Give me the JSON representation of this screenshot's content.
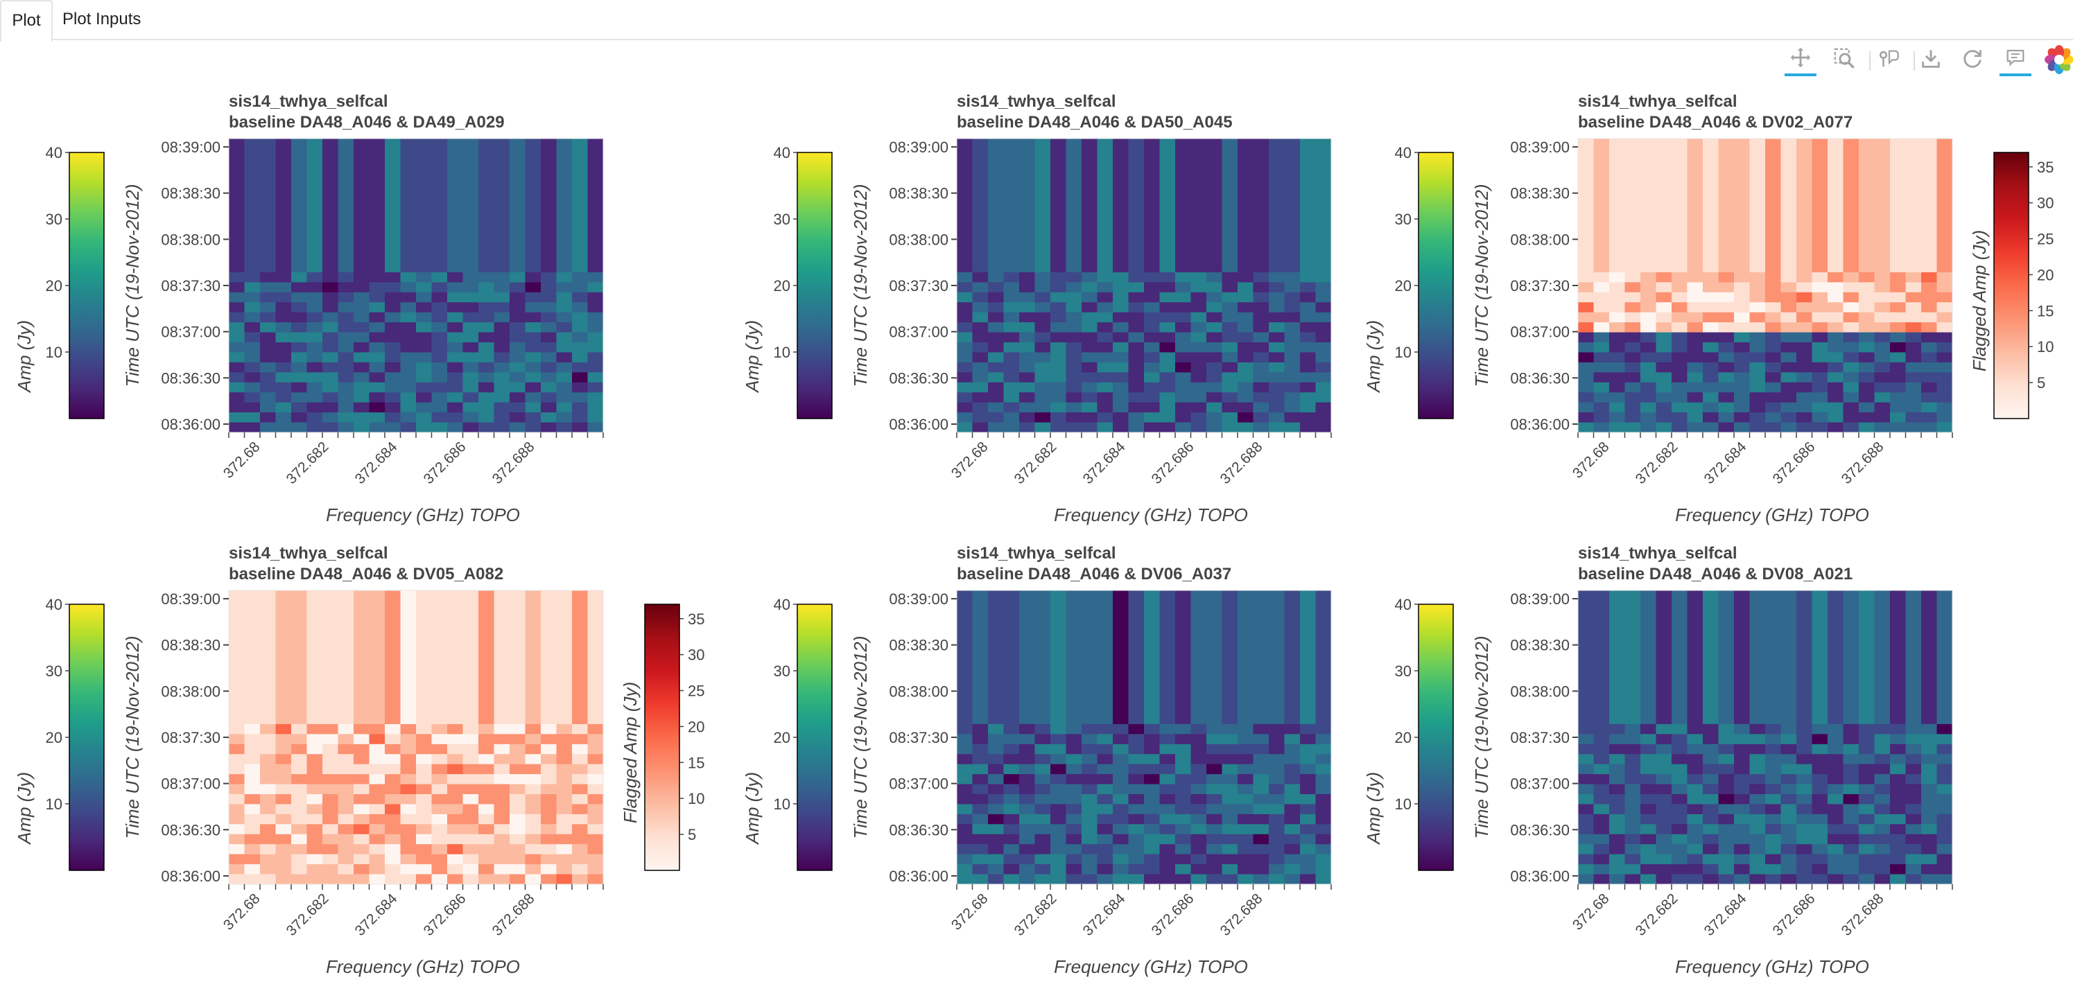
{
  "tabs": [
    {
      "label": "Plot",
      "active": true
    },
    {
      "label": "Plot Inputs",
      "active": false
    }
  ],
  "toolbar": {
    "tools": [
      {
        "name": "pan-icon",
        "active": true
      },
      {
        "name": "box-zoom-icon",
        "active": false
      },
      {
        "name": "hover-icon",
        "active": false
      },
      {
        "name": "save-icon",
        "active": false
      },
      {
        "name": "reset-icon",
        "active": false
      },
      {
        "name": "comment-icon",
        "active": true
      },
      {
        "name": "bokeh-logo",
        "active": false
      }
    ],
    "accent": "#26aae1"
  },
  "colormaps": {
    "viridis": [
      "#440154",
      "#482878",
      "#3e4989",
      "#31688e",
      "#26828e",
      "#1f9e89",
      "#35b779",
      "#6ece58",
      "#b5de2b",
      "#fde725"
    ],
    "reds": [
      "#fff5f0",
      "#fee0d2",
      "#fcbba1",
      "#fc9272",
      "#fb6a4a",
      "#ef3b2c",
      "#cb181d",
      "#a50f15",
      "#67000d"
    ]
  },
  "chart_data": [
    {
      "type": "heatmap",
      "title": "sis14_twhya_selfcal",
      "subtitle": "baseline DA48_A046 & DA49_A029",
      "xlabel": "Frequency (GHz) TOPO",
      "ylabel": "Time UTC (19-Nov-2012)",
      "x_ticks": [
        "372.68",
        "372.682",
        "372.684",
        "372.686",
        "372.688"
      ],
      "y_ticks": [
        "08:36:00",
        "08:36:30",
        "08:37:00",
        "08:37:30",
        "08:38:00",
        "08:38:30",
        "08:39:00"
      ],
      "colorbar": {
        "label": "Amp (Jy)",
        "ticks": [
          "10",
          "20",
          "30",
          "40"
        ],
        "range": [
          0,
          40
        ],
        "cmap": "viridis"
      },
      "flag_colorbar": null,
      "channels": 24,
      "rows_below_break": 16,
      "flag_region": null,
      "seed": 11,
      "cell_style": "viridis"
    },
    {
      "type": "heatmap",
      "title": "sis14_twhya_selfcal",
      "subtitle": "baseline DA48_A046 & DA50_A045",
      "xlabel": "Frequency (GHz) TOPO",
      "ylabel": "Time UTC (19-Nov-2012)",
      "x_ticks": [
        "372.68",
        "372.682",
        "372.684",
        "372.686",
        "372.688"
      ],
      "y_ticks": [
        "08:36:00",
        "08:36:30",
        "08:37:00",
        "08:37:30",
        "08:38:00",
        "08:38:30",
        "08:39:00"
      ],
      "colorbar": {
        "label": "Amp (Jy)",
        "ticks": [
          "10",
          "20",
          "30",
          "40"
        ],
        "range": [
          0,
          40
        ],
        "cmap": "viridis"
      },
      "flag_colorbar": null,
      "channels": 24,
      "rows_below_break": 16,
      "flag_region": null,
      "seed": 23,
      "cell_style": "viridis"
    },
    {
      "type": "heatmap",
      "title": "sis14_twhya_selfcal",
      "subtitle": "baseline DA48_A046 & DV02_A077",
      "xlabel": "Frequency (GHz) TOPO",
      "ylabel": "Time UTC (19-Nov-2012)",
      "x_ticks": [
        "372.68",
        "372.682",
        "372.684",
        "372.686",
        "372.688"
      ],
      "y_ticks": [
        "08:36:00",
        "08:36:30",
        "08:37:00",
        "08:37:30",
        "08:38:00",
        "08:38:30",
        "08:39:00"
      ],
      "colorbar": {
        "label": "Amp (Jy)",
        "ticks": [
          "10",
          "20",
          "30",
          "40"
        ],
        "range": [
          0,
          40
        ],
        "cmap": "viridis"
      },
      "flag_colorbar": {
        "label": "Flagged Amp (Jy)",
        "ticks": [
          "5",
          "10",
          "15",
          "20",
          "25",
          "30",
          "35"
        ],
        "range": [
          0,
          37
        ],
        "cmap": "reds"
      },
      "channels": 24,
      "rows_below_break": 16,
      "flag_region": "upper",
      "seed": 37,
      "cell_style": "mixed"
    },
    {
      "type": "heatmap",
      "title": "sis14_twhya_selfcal",
      "subtitle": "baseline DA48_A046 & DV05_A082",
      "xlabel": "Frequency (GHz) TOPO",
      "ylabel": "Time UTC (19-Nov-2012)",
      "x_ticks": [
        "372.68",
        "372.682",
        "372.684",
        "372.686",
        "372.688"
      ],
      "y_ticks": [
        "08:36:00",
        "08:36:30",
        "08:37:00",
        "08:37:30",
        "08:38:00",
        "08:38:30",
        "08:39:00"
      ],
      "colorbar": {
        "label": "Amp (Jy)",
        "ticks": [
          "10",
          "20",
          "30",
          "40"
        ],
        "range": [
          0,
          40
        ],
        "cmap": "viridis"
      },
      "flag_colorbar": {
        "label": "Flagged Amp (Jy)",
        "ticks": [
          "5",
          "10",
          "15",
          "20",
          "25",
          "30",
          "35"
        ],
        "range": [
          0,
          37
        ],
        "cmap": "reds"
      },
      "channels": 24,
      "rows_below_break": 16,
      "flag_region": "all",
      "seed": 53,
      "cell_style": "reds"
    },
    {
      "type": "heatmap",
      "title": "sis14_twhya_selfcal",
      "subtitle": "baseline DA48_A046 & DV06_A037",
      "xlabel": "Frequency (GHz) TOPO",
      "ylabel": "Time UTC (19-Nov-2012)",
      "x_ticks": [
        "372.68",
        "372.682",
        "372.684",
        "372.686",
        "372.688"
      ],
      "y_ticks": [
        "08:36:00",
        "08:36:30",
        "08:37:00",
        "08:37:30",
        "08:38:00",
        "08:38:30",
        "08:39:00"
      ],
      "colorbar": {
        "label": "Amp (Jy)",
        "ticks": [
          "10",
          "20",
          "30",
          "40"
        ],
        "range": [
          0,
          40
        ],
        "cmap": "viridis"
      },
      "flag_colorbar": null,
      "channels": 24,
      "rows_below_break": 16,
      "flag_region": null,
      "seed": 71,
      "cell_style": "viridis"
    },
    {
      "type": "heatmap",
      "title": "sis14_twhya_selfcal",
      "subtitle": "baseline DA48_A046 & DV08_A021",
      "xlabel": "Frequency (GHz) TOPO",
      "ylabel": "Time UTC (19-Nov-2012)",
      "x_ticks": [
        "372.68",
        "372.682",
        "372.684",
        "372.686",
        "372.688"
      ],
      "y_ticks": [
        "08:36:00",
        "08:36:30",
        "08:37:00",
        "08:37:30",
        "08:38:00",
        "08:38:30",
        "08:39:00"
      ],
      "colorbar": {
        "label": "Amp (Jy)",
        "ticks": [
          "10",
          "20",
          "30",
          "40"
        ],
        "range": [
          0,
          40
        ],
        "cmap": "viridis"
      },
      "flag_colorbar": null,
      "channels": 24,
      "rows_below_break": 16,
      "flag_region": null,
      "seed": 89,
      "cell_style": "viridis"
    }
  ]
}
